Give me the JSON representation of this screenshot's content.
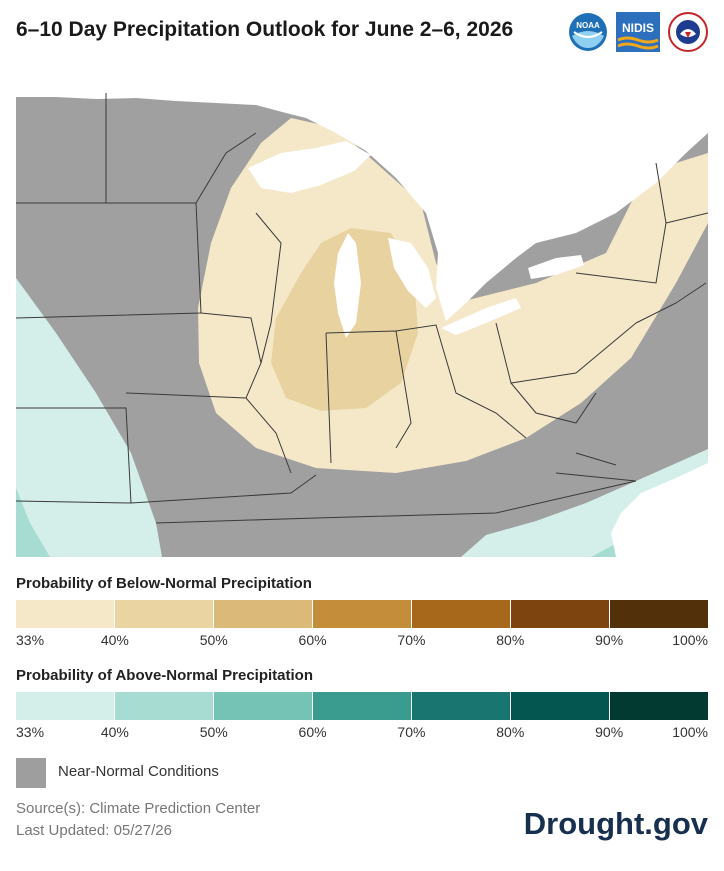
{
  "title": "6–10 Day Precipitation Outlook for June 2–6, 2026",
  "logos": [
    {
      "name": "noaa-logo",
      "text": "NOAA"
    },
    {
      "name": "nidis-logo",
      "text": "NIDIS"
    },
    {
      "name": "nws-logo",
      "text": "NATIONAL WEATHER SERVICE"
    }
  ],
  "map": {
    "categories": [
      {
        "name": "Near-Normal",
        "color": "#9e9e9e"
      },
      {
        "name": "Below 33-40%",
        "color": "#f5e8c9"
      },
      {
        "name": "Below 40-50%",
        "color": "#e8d3a0"
      },
      {
        "name": "Above 33-40%",
        "color": "#d4efea"
      },
      {
        "name": "Above 40-50%",
        "color": "#a7dcd2"
      }
    ]
  },
  "legend_below": {
    "title": "Probability of Below-Normal Precipitation",
    "colors": [
      "#f5e8c9",
      "#ead4a2",
      "#dbb979",
      "#c38d39",
      "#a8681c",
      "#7e4410",
      "#52310a"
    ],
    "ticks": [
      "33%",
      "40%",
      "50%",
      "60%",
      "70%",
      "80%",
      "90%",
      "100%"
    ]
  },
  "legend_above": {
    "title": "Probability of Above-Normal Precipitation",
    "colors": [
      "#d4efea",
      "#a7dcd2",
      "#75c3b5",
      "#3a9c8f",
      "#187570",
      "#045750",
      "#023a31"
    ],
    "ticks": [
      "33%",
      "40%",
      "50%",
      "60%",
      "70%",
      "80%",
      "90%",
      "100%"
    ]
  },
  "near_normal": {
    "label": "Near-Normal Conditions",
    "color": "#9e9e9e"
  },
  "source": {
    "line1": "Source(s): Climate Prediction Center",
    "line2": "Last Updated: 05/27/26"
  },
  "brand": "Drought.gov"
}
